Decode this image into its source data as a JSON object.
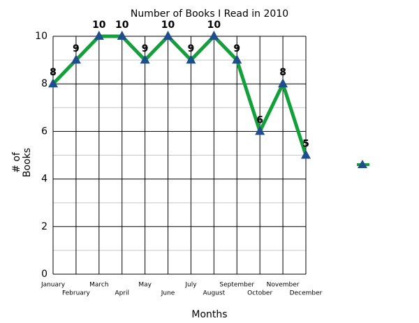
{
  "chart_data": {
    "type": "line",
    "title": "Number of Books I Read in 2010",
    "x_label": "Months",
    "y_label": "# of Books",
    "categories": [
      "January",
      "February",
      "March",
      "April",
      "May",
      "June",
      "July",
      "August",
      "September",
      "October",
      "November",
      "December"
    ],
    "values": [
      8,
      9,
      10,
      10,
      9,
      10,
      9,
      10,
      9,
      6,
      8,
      5
    ],
    "color": "#12a03a",
    "marker_color": "#1f4e8c",
    "ylim": [
      0,
      10
    ],
    "yticks": [
      0,
      2,
      4,
      6,
      8,
      10
    ],
    "grid": true
  }
}
